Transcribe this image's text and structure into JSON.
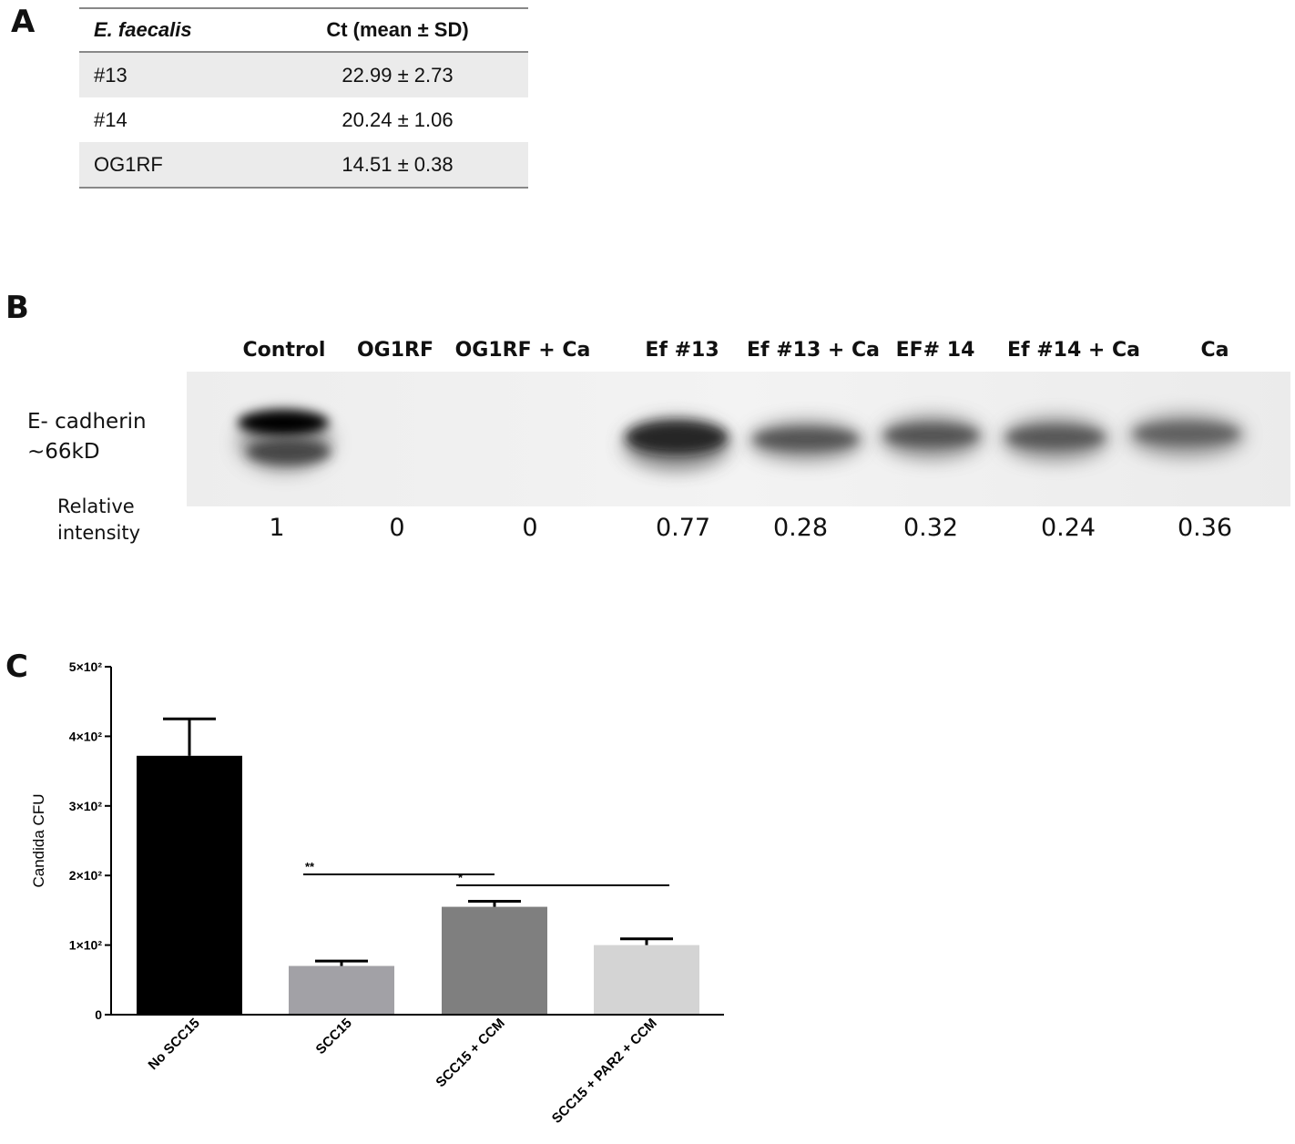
{
  "panels": {
    "a": "A",
    "b": "B",
    "c": "C"
  },
  "table_a": {
    "headers": [
      "E. faecalis",
      "Ct (mean ± SD)"
    ],
    "rows": [
      {
        "strain": "#13",
        "ct": "22.99 ± 2.73"
      },
      {
        "strain": "#14",
        "ct": "20.24 ± 1.06"
      },
      {
        "strain": "OG1RF",
        "ct": "14.51 ± 0.38"
      }
    ]
  },
  "blot": {
    "lanes": [
      "Control",
      "OG1RF",
      "OG1RF + Ca",
      "Ef #13",
      "Ef #13 + Ca",
      "EF# 14",
      "Ef #14 + Ca",
      "Ca"
    ],
    "protein_label": "E- cadherin",
    "size_label": "~66kD",
    "ri_label_line1": "Relative",
    "ri_label_line2": "intensity",
    "relative_intensity": [
      "1",
      "0",
      "0",
      "0.77",
      "0.28",
      "0.32",
      "0.24",
      "0.36"
    ]
  },
  "chart_data": {
    "type": "bar",
    "ylabel": "Candida CFU",
    "ylim": [
      0,
      500
    ],
    "y_ticks": [
      {
        "value": 0,
        "label": "0"
      },
      {
        "value": 100,
        "label": "1×10²"
      },
      {
        "value": 200,
        "label": "2×10²"
      },
      {
        "value": 300,
        "label": "3×10²"
      },
      {
        "value": 400,
        "label": "4×10²"
      },
      {
        "value": 500,
        "label": "5×10²"
      }
    ],
    "categories": [
      "No SCC15",
      "SCC15",
      "SCC15 + CCM",
      "SCC15 + PAR2 + CCM"
    ],
    "values": [
      372,
      70,
      155,
      100
    ],
    "error_upper": [
      425,
      77,
      163,
      109
    ],
    "colors": [
      "#000000",
      "#a2a1a6",
      "#7f7f7f",
      "#d4d4d4"
    ],
    "significance": [
      {
        "from": 1,
        "to": 2,
        "label": "**"
      },
      {
        "from": 2,
        "to": 3,
        "label": "*"
      }
    ]
  }
}
